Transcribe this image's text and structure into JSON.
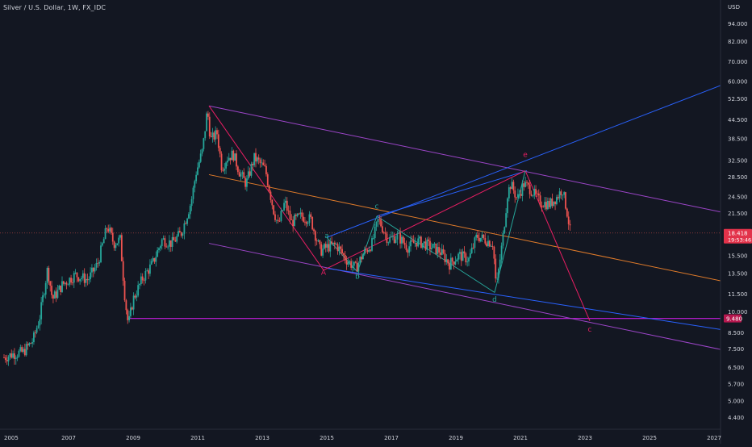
{
  "header": {
    "title": "Silver / U.S. Dollar, 1W, FX_IDC",
    "currency": "USD"
  },
  "colors": {
    "background": "#131722",
    "axis_text": "#d1d4dc",
    "candle_up": "#26a69a",
    "candle_down": "#ef5350",
    "purple_line": "#9c45c8",
    "blue_line": "#2962ff",
    "orange_line": "#e07b2a",
    "red_line": "#e91e63",
    "teal_line": "#26a69a",
    "support_line": "#c71ee0",
    "price_badge": "#e2324a",
    "support_badge": "#b5174e"
  },
  "chart_data": {
    "type": "candlestick",
    "title": "Silver / U.S. Dollar, 1W, FX_IDC",
    "y_scale": "log",
    "ylim": [
      4,
      110
    ],
    "xlim": [
      2005.0,
      2027.2
    ],
    "y_ticks": [
      "94.000",
      "82.000",
      "70.000",
      "60.000",
      "52.500",
      "44.500",
      "38.500",
      "32.500",
      "28.500",
      "24.500",
      "21.500",
      "18.418",
      "15.500",
      "13.500",
      "11.500",
      "10.000",
      "9.480",
      "8.500",
      "7.500",
      "6.500",
      "5.700",
      "5.000",
      "4.400"
    ],
    "x_ticks": [
      "2005",
      "2007",
      "2009",
      "2011",
      "2013",
      "2015",
      "2017",
      "2019",
      "2021",
      "2023",
      "2025",
      "2027"
    ],
    "last_price": "18.418",
    "countdown": "19:53:46",
    "support_level_label": "9.480",
    "price_path": [
      [
        2005.0,
        7.0
      ],
      [
        2005.3,
        7.2
      ],
      [
        2005.6,
        7.3
      ],
      [
        2005.9,
        8.0
      ],
      [
        2006.1,
        9.5
      ],
      [
        2006.35,
        14.0
      ],
      [
        2006.5,
        11.0
      ],
      [
        2006.8,
        12.3
      ],
      [
        2007.2,
        13.3
      ],
      [
        2007.6,
        12.8
      ],
      [
        2007.9,
        14.5
      ],
      [
        2008.2,
        19.5
      ],
      [
        2008.4,
        17.0
      ],
      [
        2008.6,
        17.5
      ],
      [
        2008.75,
        11.0
      ],
      [
        2008.85,
        9.0
      ],
      [
        2009.0,
        11.0
      ],
      [
        2009.3,
        13.0
      ],
      [
        2009.6,
        14.5
      ],
      [
        2009.9,
        17.5
      ],
      [
        2010.2,
        17.0
      ],
      [
        2010.5,
        18.5
      ],
      [
        2010.8,
        23.5
      ],
      [
        2010.95,
        29.5
      ],
      [
        2011.15,
        35.0
      ],
      [
        2011.3,
        48.0
      ],
      [
        2011.4,
        38.0
      ],
      [
        2011.6,
        40.0
      ],
      [
        2011.75,
        30.5
      ],
      [
        2011.9,
        33.0
      ],
      [
        2012.1,
        34.0
      ],
      [
        2012.3,
        29.5
      ],
      [
        2012.5,
        27.0
      ],
      [
        2012.75,
        33.0
      ],
      [
        2012.9,
        32.0
      ],
      [
        2013.1,
        30.0
      ],
      [
        2013.35,
        22.0
      ],
      [
        2013.5,
        19.5
      ],
      [
        2013.7,
        23.5
      ],
      [
        2013.9,
        20.0
      ],
      [
        2014.2,
        21.0
      ],
      [
        2014.5,
        20.5
      ],
      [
        2014.8,
        16.0
      ],
      [
        2015.0,
        16.5
      ],
      [
        2015.3,
        16.8
      ],
      [
        2015.6,
        15.0
      ],
      [
        2015.9,
        14.0
      ],
      [
        2016.1,
        15.5
      ],
      [
        2016.4,
        17.0
      ],
      [
        2016.6,
        20.5
      ],
      [
        2016.9,
        17.5
      ],
      [
        2017.2,
        18.0
      ],
      [
        2017.5,
        16.5
      ],
      [
        2017.8,
        17.3
      ],
      [
        2018.1,
        16.8
      ],
      [
        2018.5,
        16.0
      ],
      [
        2018.8,
        14.5
      ],
      [
        2019.1,
        15.5
      ],
      [
        2019.4,
        15.0
      ],
      [
        2019.65,
        18.0
      ],
      [
        2019.9,
        17.5
      ],
      [
        2020.15,
        17.0
      ],
      [
        2020.25,
        12.0
      ],
      [
        2020.45,
        17.5
      ],
      [
        2020.6,
        25.0
      ],
      [
        2020.7,
        27.0
      ],
      [
        2020.9,
        24.0
      ],
      [
        2021.1,
        27.0
      ],
      [
        2021.3,
        26.0
      ],
      [
        2021.6,
        23.5
      ],
      [
        2021.9,
        23.0
      ],
      [
        2022.15,
        24.5
      ],
      [
        2022.3,
        26.0
      ],
      [
        2022.45,
        21.5
      ],
      [
        2022.55,
        18.4
      ]
    ],
    "annotations": [
      {
        "label": "a",
        "x": 2015.0,
        "y": 17.7,
        "color": "#26a69a"
      },
      {
        "label": "A",
        "x": 2014.9,
        "y": 13.3,
        "color": "#e91e63"
      },
      {
        "label": "b",
        "x": 2015.95,
        "y": 12.9,
        "color": "#26a69a"
      },
      {
        "label": "c",
        "x": 2016.55,
        "y": 22.3,
        "color": "#26a69a"
      },
      {
        "label": "d",
        "x": 2020.2,
        "y": 10.8,
        "color": "#26a69a"
      },
      {
        "label": "e",
        "x": 2021.15,
        "y": 33.3,
        "color": "#e91e63"
      },
      {
        "label": "c",
        "x": 2023.15,
        "y": 8.55,
        "color": "#e91e63"
      }
    ]
  }
}
